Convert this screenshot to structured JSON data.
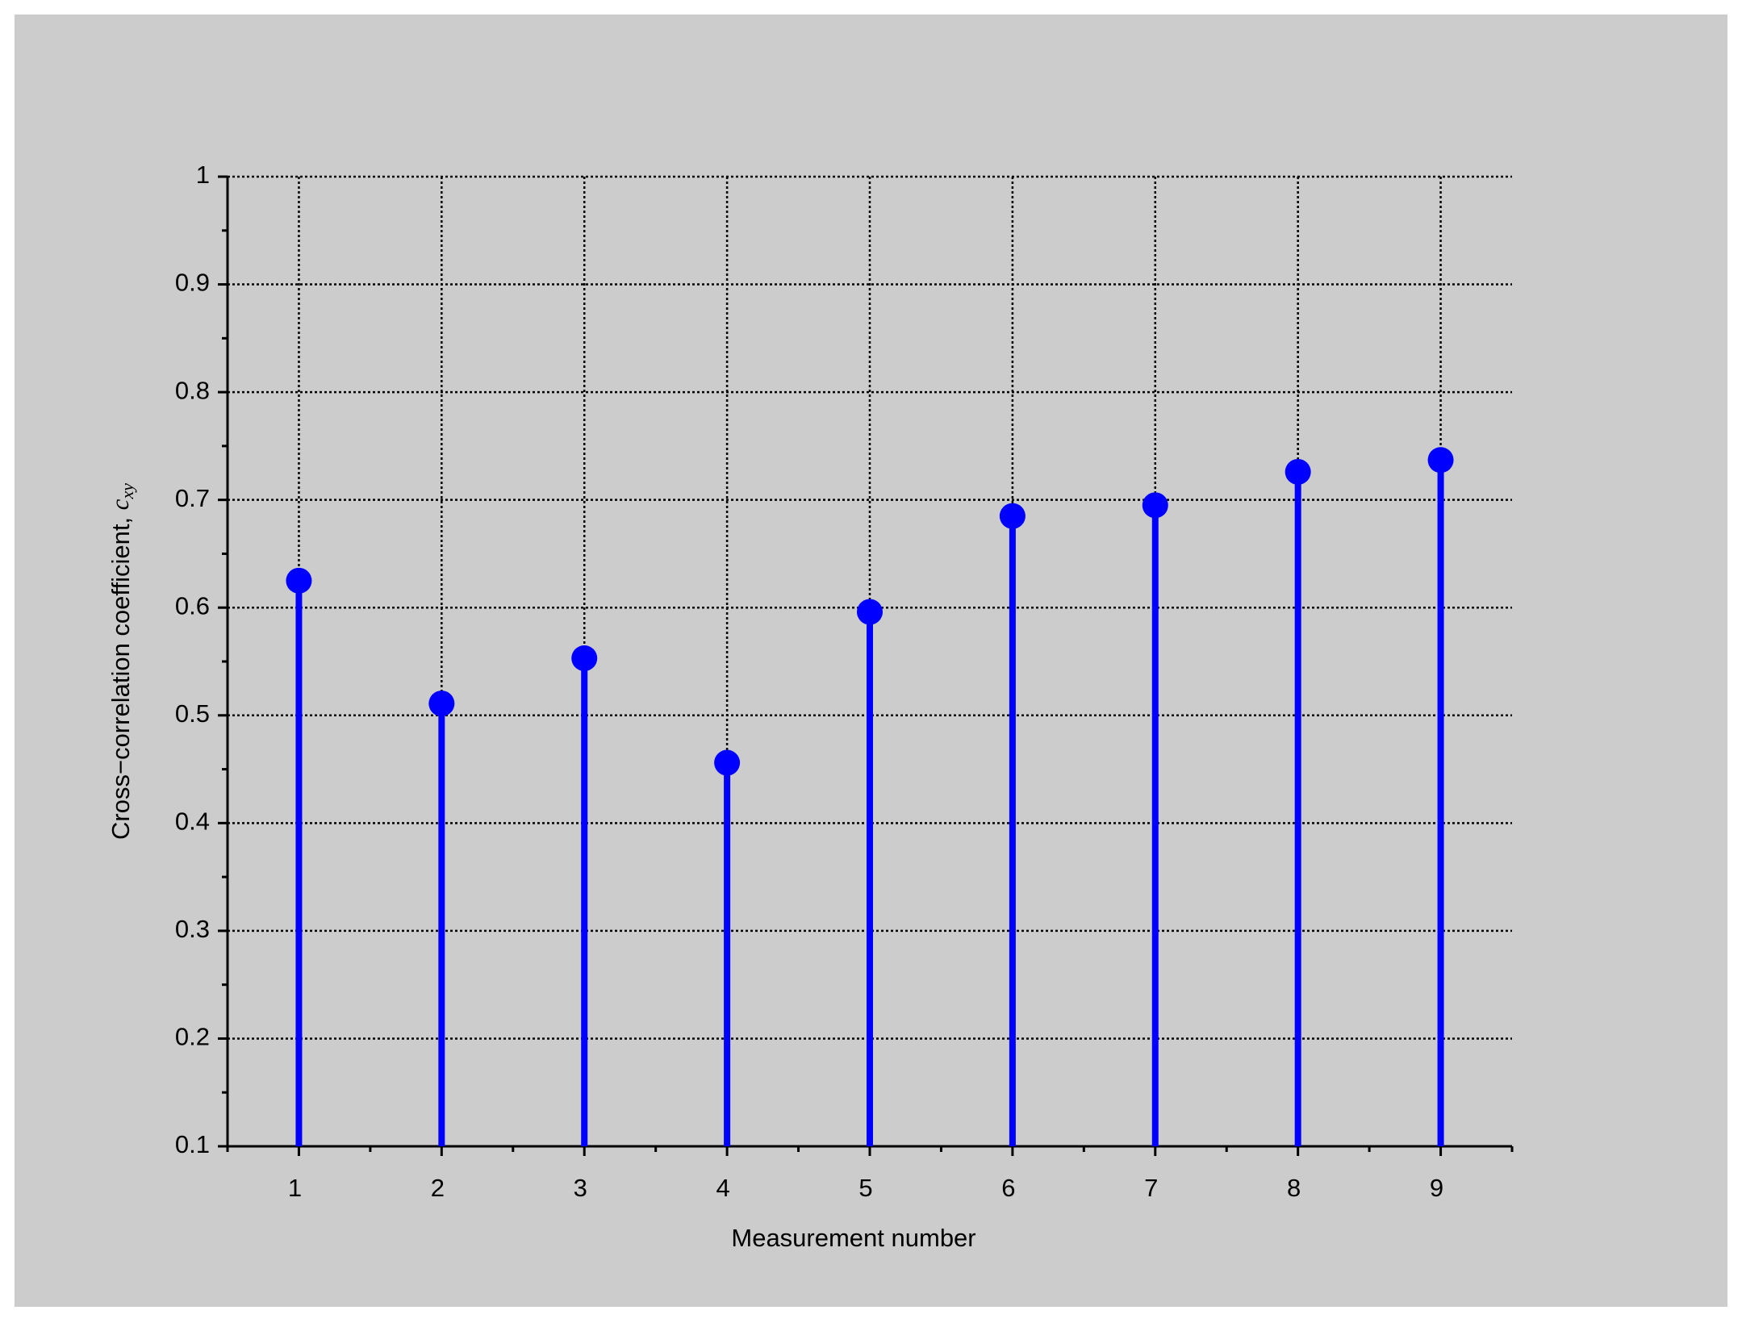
{
  "chart_data": {
    "type": "stem",
    "xlabel": "Measurement number",
    "ylabel": "Cross−correlation coefficient,",
    "ylabel_symbol": "c",
    "ylabel_subscript": "xy",
    "x": [
      1,
      2,
      3,
      4,
      5,
      6,
      7,
      8,
      9
    ],
    "values": [
      0.625,
      0.511,
      0.553,
      0.456,
      0.596,
      0.685,
      0.695,
      0.726,
      0.737
    ],
    "color": "#0000ff",
    "xlim": [
      0.5,
      9.5
    ],
    "xticks": [
      1,
      2,
      3,
      4,
      5,
      6,
      7,
      8,
      9
    ],
    "ylim": [
      0.1,
      1
    ],
    "yticks": [
      0.1,
      0.2,
      0.3,
      0.4,
      0.5,
      0.6,
      0.7,
      0.8,
      0.9,
      1
    ],
    "grid": true
  }
}
